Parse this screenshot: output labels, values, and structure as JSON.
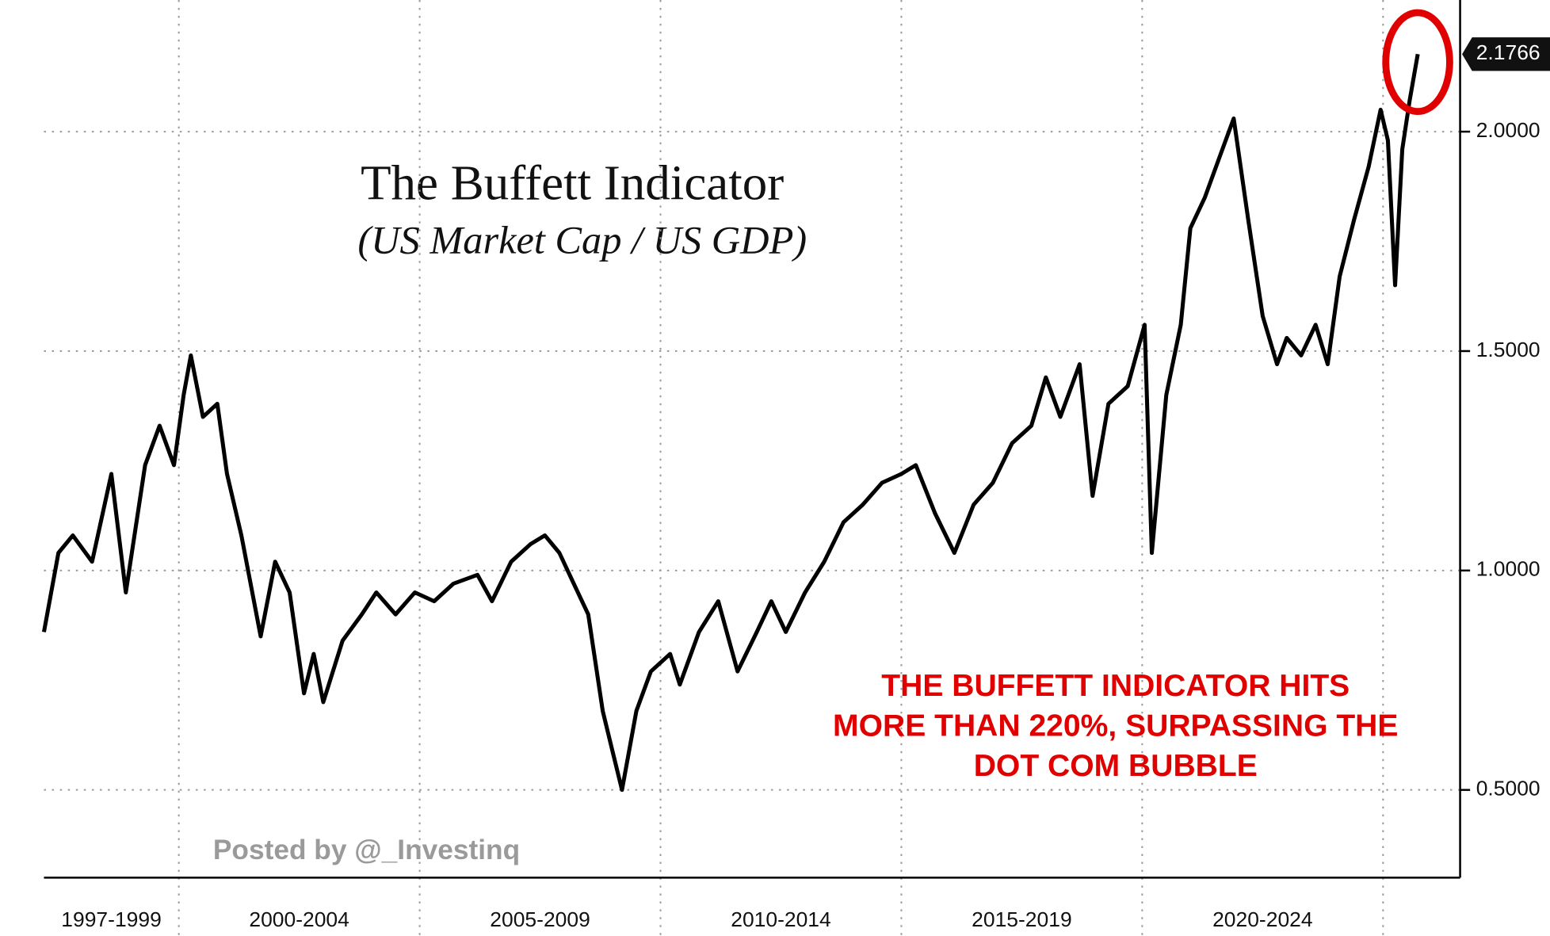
{
  "chart_data": {
    "type": "line",
    "title": "The Buffett Indicator",
    "subtitle": "(US Market Cap / US GDP)",
    "annotation_lines": [
      "THE BUFFETT INDICATOR HITS",
      "MORE THAN 220%, SURPASSING THE",
      "DOT COM BUBBLE"
    ],
    "watermark": "Posted by @_Investinq",
    "last_value_label": "2.1766",
    "color": "#000000",
    "x": [
      1997.2,
      1997.5,
      1997.8,
      1998.2,
      1998.6,
      1998.9,
      1999.3,
      1999.6,
      1999.9,
      2000.1,
      2000.25,
      2000.5,
      2000.8,
      2001.0,
      2001.3,
      2001.7,
      2002.0,
      2002.3,
      2002.6,
      2002.8,
      2003.0,
      2003.4,
      2003.8,
      2004.1,
      2004.5,
      2004.9,
      2005.3,
      2005.7,
      2006.2,
      2006.5,
      2006.9,
      2007.3,
      2007.6,
      2007.9,
      2008.2,
      2008.5,
      2008.8,
      2009.0,
      2009.2,
      2009.5,
      2009.8,
      2010.2,
      2010.4,
      2010.8,
      2011.2,
      2011.6,
      2012.0,
      2012.3,
      2012.6,
      2013.0,
      2013.4,
      2013.8,
      2014.2,
      2014.6,
      2015.0,
      2015.3,
      2015.7,
      2016.1,
      2016.5,
      2016.9,
      2017.3,
      2017.7,
      2018.0,
      2018.3,
      2018.7,
      2018.97,
      2019.3,
      2019.7,
      2020.05,
      2020.2,
      2020.5,
      2020.8,
      2021.0,
      2021.3,
      2021.6,
      2021.9,
      2022.2,
      2022.5,
      2022.8,
      2023.0,
      2023.3,
      2023.6,
      2023.85,
      2024.1,
      2024.4,
      2024.7,
      2024.95,
      2025.1,
      2025.25,
      2025.4,
      2025.55,
      2025.72
    ],
    "values": [
      0.86,
      1.04,
      1.08,
      1.02,
      1.22,
      0.95,
      1.24,
      1.33,
      1.24,
      1.4,
      1.49,
      1.35,
      1.38,
      1.22,
      1.08,
      0.85,
      1.02,
      0.95,
      0.72,
      0.81,
      0.7,
      0.84,
      0.9,
      0.95,
      0.9,
      0.95,
      0.93,
      0.97,
      0.99,
      0.93,
      1.02,
      1.06,
      1.08,
      1.04,
      0.97,
      0.9,
      0.68,
      0.59,
      0.5,
      0.68,
      0.77,
      0.81,
      0.74,
      0.86,
      0.93,
      0.77,
      0.86,
      0.93,
      0.86,
      0.95,
      1.02,
      1.11,
      1.15,
      1.2,
      1.22,
      1.24,
      1.13,
      1.04,
      1.15,
      1.2,
      1.29,
      1.33,
      1.44,
      1.35,
      1.47,
      1.17,
      1.38,
      1.42,
      1.56,
      1.04,
      1.4,
      1.56,
      1.78,
      1.85,
      1.94,
      2.03,
      1.8,
      1.58,
      1.47,
      1.53,
      1.49,
      1.56,
      1.47,
      1.67,
      1.8,
      1.92,
      2.05,
      1.98,
      1.65,
      1.96,
      2.07,
      2.1766
    ],
    "x_periods": [
      {
        "label": "1997-1999",
        "start": 1997.2,
        "end": 2000
      },
      {
        "label": "2000-2004",
        "start": 2000,
        "end": 2005
      },
      {
        "label": "2005-2009",
        "start": 2005,
        "end": 2010
      },
      {
        "label": "2010-2014",
        "start": 2010,
        "end": 2015
      },
      {
        "label": "2015-2019",
        "start": 2015,
        "end": 2020
      },
      {
        "label": "2020-2024",
        "start": 2020,
        "end": 2025
      }
    ],
    "xlim": [
      1997.2,
      2026.6
    ],
    "ylim": [
      0.3,
      2.3
    ],
    "yticks": [
      {
        "value": 0.5,
        "label": "0.5000"
      },
      {
        "value": 1,
        "label": "1.0000"
      },
      {
        "value": 1.5,
        "label": "1.5000"
      },
      {
        "value": 2,
        "label": "2.0000"
      }
    ],
    "grid": true
  }
}
